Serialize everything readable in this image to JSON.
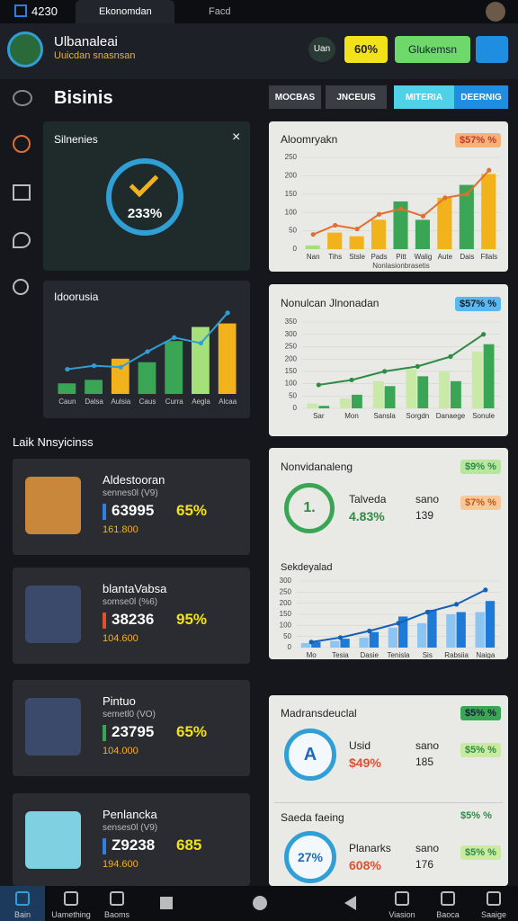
{
  "status_bar": {
    "time": "4230",
    "tabs": [
      "Ekonomdan",
      "Facd"
    ]
  },
  "header": {
    "title": "Ulbanaleai",
    "subtitle": "Uuicdan snasnsan",
    "chip": "Uan",
    "percent_button": "60%",
    "action_button": "Glukemsn"
  },
  "section_title": "Bisinis",
  "tabs": [
    "MOCBAS",
    "JNCEUIS",
    "MITERIA",
    "DEERNIG"
  ],
  "gauge_card": {
    "title": "Silnenies",
    "value_label": "233%"
  },
  "mini_chart": {
    "title": "Idoorusia",
    "type": "bar",
    "categories": [
      "Caun",
      "Dalsa",
      "Aulsia",
      "Caus",
      "Curra",
      "Aegla",
      "Alcaa"
    ],
    "series": [
      {
        "type": "bar",
        "colors": [
          "#3aa655",
          "#3aa655",
          "#f2b21b",
          "#3aa655",
          "#3aa655",
          "#a6e07a",
          "#f2b21b"
        ],
        "values": [
          15,
          20,
          50,
          45,
          75,
          95,
          100
        ]
      },
      {
        "type": "line",
        "color": "#2f9fd6",
        "values": [
          35,
          40,
          38,
          60,
          80,
          72,
          115
        ]
      }
    ],
    "ylim": [
      0,
      125
    ]
  },
  "list_title": "Laik Nnsyicinss",
  "list_items": [
    {
      "title": "Aldestooran",
      "subtitle": "sennes0l (V9)",
      "value": "63995",
      "percent": "65%",
      "sub_value": "161.800",
      "marker_color": "#2f7fe0"
    },
    {
      "title": "blantaVabsa",
      "subtitle": "somse0l (%6)",
      "value": "38236",
      "percent": "95%",
      "sub_value": "104.600",
      "marker_color": "#e0502f"
    },
    {
      "title": "Pintuo",
      "subtitle": "semetl0 (VO)",
      "value": "23795",
      "percent": "65%",
      "sub_value": "104.000",
      "marker_color": "#3aa655"
    },
    {
      "title": "Penlancka",
      "subtitle": "senses0l (V9)",
      "value": "Z9238",
      "percent": "685",
      "sub_value": "194.600",
      "marker_color": "#2f7fe0"
    }
  ],
  "chart_cards": [
    {
      "title": "Aloomryakn",
      "badge": "$57% %",
      "chart": {
        "type": "bar",
        "categories": [
          "Nan",
          "Tihs",
          "Stsle",
          "Pads",
          "Pitt",
          "Walig",
          "Aute",
          "Dais",
          "Fllals"
        ],
        "x_label": "Nonlasionbrasetis",
        "series": [
          {
            "type": "bar",
            "colors": [
              "#a6e07a",
              "#f2b21b",
              "#f2b21b",
              "#f2b21b",
              "#3aa655",
              "#3aa655",
              "#f2b21b",
              "#3aa655",
              "#f2b21b"
            ],
            "values": [
              10,
              45,
              35,
              80,
              130,
              80,
              140,
              175,
              205
            ]
          },
          {
            "type": "line",
            "color": "#e0702f",
            "values": [
              40,
              65,
              55,
              95,
              110,
              90,
              140,
              150,
              215
            ]
          }
        ],
        "ylim": [
          0,
          250
        ],
        "yticks": [
          0,
          50,
          100,
          150,
          200,
          250
        ]
      }
    },
    {
      "title": "Nonulcan Jlnonadan",
      "badge": "$57% %",
      "chart": {
        "type": "bar",
        "categories": [
          "Sar",
          "Mon",
          "Sansla",
          "Sorgdn",
          "Danaege",
          "Sonule"
        ],
        "series": [
          {
            "type": "bar",
            "color": "#c9e9a6",
            "values": [
              20,
              40,
              110,
              160,
              150,
              230
            ]
          },
          {
            "type": "bar",
            "color": "#3aa655",
            "values": [
              10,
              55,
              90,
              130,
              110,
              260
            ]
          },
          {
            "type": "line",
            "color": "#2e8b44",
            "values": [
              95,
              115,
              150,
              170,
              210,
              300
            ]
          }
        ],
        "ylim": [
          0,
          350
        ],
        "yticks": [
          0,
          50,
          100,
          150,
          200,
          250,
          300,
          350
        ]
      }
    }
  ],
  "summary_cards": [
    {
      "title": "Nonvidanaleng",
      "badge": "$9% %",
      "ring_label": "1.",
      "stat_label": "Talveda",
      "stat_value": "4.83%",
      "count_label": "sano",
      "count_value": "139",
      "side_badge": "$7% %",
      "chart_title": "Sekdeyalad",
      "chart": {
        "type": "bar",
        "categories": [
          "Mo",
          "Tesia",
          "Dasie",
          "Tenisla",
          "Sis",
          "Rabsiia",
          "Naiga"
        ],
        "series": [
          {
            "type": "bar",
            "color": "#8cc4f2",
            "values": [
              20,
              30,
              45,
              90,
              110,
              150,
              160
            ]
          },
          {
            "type": "bar",
            "color": "#1f7ad6",
            "values": [
              25,
              40,
              70,
              140,
              170,
              160,
              210
            ]
          },
          {
            "type": "line",
            "color": "#1560b8",
            "values": [
              25,
              45,
              75,
              110,
              160,
              195,
              260
            ]
          }
        ],
        "ylim": [
          0,
          300
        ],
        "yticks": [
          0,
          50,
          100,
          150,
          200,
          250,
          300
        ]
      }
    },
    {
      "title": "Madransdeuclal",
      "badge": "$5% %",
      "rows": [
        {
          "ring_label": "A",
          "stat_label": "Usid",
          "stat_value": "$49%",
          "count_label": "sano",
          "count_value": "185",
          "side_badge": "$5% %"
        },
        {
          "title": "Saeda faeing",
          "badge": "$5% %",
          "ring_label": "27%",
          "stat_label": "Planarks",
          "stat_value": "608%",
          "count_label": "sano",
          "count_value": "176",
          "side_badge": "$5% %"
        }
      ]
    }
  ],
  "bottom_nav": [
    "Bain",
    "Uamething",
    "Baoms",
    "Viasion",
    "Baoca",
    "Saaige"
  ]
}
